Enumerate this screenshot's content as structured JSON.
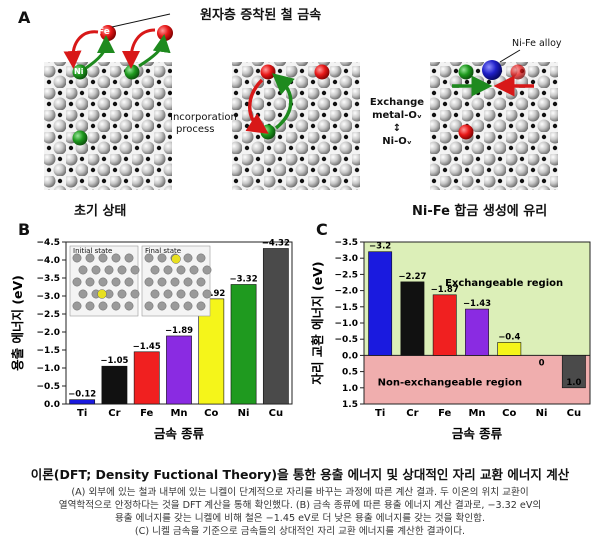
{
  "panel_a": {
    "letter": "A",
    "deposit_label": "원자층 증착된 철 금속",
    "fe_tag": "Fe",
    "ni_tag": "Ni",
    "incorporation_label": [
      "Incorporation",
      "process"
    ],
    "exchange_label": [
      "Exchange",
      "metal-Oᵥ",
      "↕",
      "Ni-Oᵥ"
    ],
    "alloy_label": "Ni-Fe alloy",
    "initial_label": "초기 상태",
    "favor_label": "Ni-Fe 합금 생성에 유리"
  },
  "panel_b": {
    "letter": "B",
    "inset_initial": "Initial state",
    "inset_final": "Final state"
  },
  "panel_c": {
    "letter": "C",
    "exchangeable": "Exchangeable region",
    "non_exchangeable": "Non-exchangeable region"
  },
  "chart_data": [
    {
      "type": "bar",
      "categories": [
        "Ti",
        "Cr",
        "Fe",
        "Mn",
        "Co",
        "Ni",
        "Cu"
      ],
      "values": [
        -0.12,
        -1.05,
        -1.45,
        -1.89,
        -2.92,
        -3.32,
        -4.32
      ],
      "value_labels": [
        "−0.12",
        "−1.05",
        "−1.45",
        "−1.89",
        "−2.92",
        "−3.32",
        "−4.32"
      ],
      "colors": [
        "#1a1adf",
        "#111111",
        "#f02020",
        "#8a2be2",
        "#f5f51a",
        "#1f9a1f",
        "#4a4a4a"
      ],
      "xlabel": "금속 종류",
      "ylabel": "용출 에너지 (eV)",
      "ylim": [
        0.0,
        -4.5
      ],
      "yticks": [
        0.0,
        -0.5,
        -1.0,
        -1.5,
        -2.0,
        -2.5,
        -3.0,
        -3.5,
        -4.0,
        -4.5
      ],
      "ytick_labels": [
        "0.0",
        "−0.5",
        "−1.0",
        "−1.5",
        "−2.0",
        "−2.5",
        "−3.0",
        "−3.5",
        "−4.0",
        "−4.5"
      ]
    },
    {
      "type": "bar",
      "categories": [
        "Ti",
        "Cr",
        "Fe",
        "Mn",
        "Co",
        "Ni",
        "Cu"
      ],
      "values": [
        -3.2,
        -2.27,
        -1.87,
        -1.43,
        -0.4,
        0,
        1.0
      ],
      "value_labels": [
        "−3.2",
        "−2.27",
        "−1.87",
        "−1.43",
        "−0.4",
        "0",
        "1.0"
      ],
      "colors": [
        "#1a1adf",
        "#111111",
        "#f02020",
        "#8a2be2",
        "#f5f51a",
        "#1f9a1f",
        "#4a4a4a"
      ],
      "xlabel": "금속 종류",
      "ylabel": "자리 교환 에너지 (eV)",
      "ylim": [
        -3.5,
        1.5
      ],
      "yticks": [
        -3.5,
        -3.0,
        -2.5,
        -2.0,
        -1.5,
        -1.0,
        -0.5,
        0.0,
        0.5,
        1.0,
        1.5
      ],
      "ytick_labels": [
        "−3.5",
        "−3.0",
        "−2.5",
        "−2.0",
        "−1.5",
        "−1.0",
        "−0.5",
        "0.0",
        "0.5",
        "1.0",
        "1.5"
      ],
      "region_colors": {
        "exchangeable": "#dcefb8",
        "non_exchangeable": "#f0aeae"
      }
    }
  ],
  "caption": {
    "title": "이론(DFT; Density Fuctional Theory)을 통한 용출 에너지 및 상대적인 자리 교환 에너지 계산",
    "lines": [
      "(A) 외부에 있는 철과 내부에 있는 니켈이 단계적으로 자리를 바꾸는 과정에 따른 계산 결과. 두 이온의 위치 교환이",
      "열역학적으로 안정하다는 것을 DFT 계산을 통해 확인했다. (B) 금속 종류에 따른 용출 에너지 계산 결과로, −3.32 eV의",
      "용출 에너지를 갖는 니켈에 비해 철은 −1.45 eV로 더 낮은 용출 에너지를 갖는 것을 확인함.",
      "(C) 니켈 금속을 기준으로 금속들의 상대적인 자리 교환 에너지를 계산한 결과이다."
    ]
  }
}
